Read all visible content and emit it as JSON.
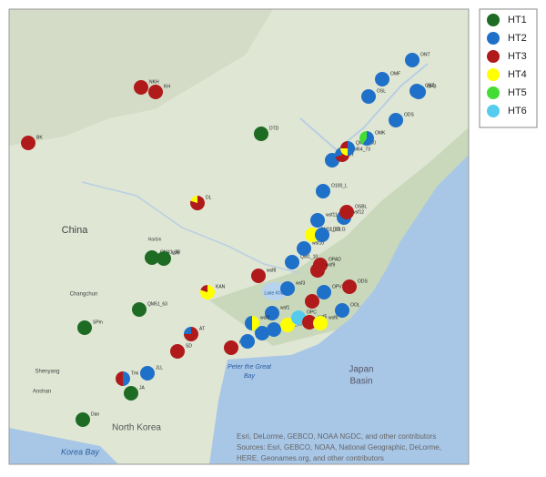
{
  "legend": [
    {
      "label": "HT1",
      "color": "#1e6b24"
    },
    {
      "label": "HT2",
      "color": "#1f70c8"
    },
    {
      "label": "HT3",
      "color": "#b01a1a"
    },
    {
      "label": "HT4",
      "color": "#ffff00"
    },
    {
      "label": "HT5",
      "color": "#44dd33"
    },
    {
      "label": "HT6",
      "color": "#55ccee"
    }
  ],
  "map_labels": [
    "China",
    "Harbin",
    "Changchun",
    "Shenyang",
    "Anshan",
    "North Korea",
    "Korea Bay",
    "Peter the Great",
    "Bay",
    "Japan",
    "Basin",
    "Lake Khanka"
  ],
  "attribution": [
    "Esri, DeLorme, GEBCO, NOAA NGDC, and other contributors",
    "Sources: Esri, GEBCO, NOAA, National Geographic, DeLorme,",
    "HERE, Geonames.org, and other contributors"
  ],
  "markers": [
    {
      "label": "BK",
      "slices": [
        {
          "ht": "HT3",
          "pct": 100
        }
      ]
    },
    {
      "label": "NKH",
      "slices": [
        {
          "ht": "HT3",
          "pct": 100
        }
      ]
    },
    {
      "label": "KH",
      "slices": [
        {
          "ht": "HT3",
          "pct": 100
        }
      ]
    },
    {
      "label": "DTD",
      "slices": [
        {
          "ht": "HT1",
          "pct": 100
        }
      ]
    },
    {
      "label": "DL",
      "slices": [
        {
          "ht": "HT3",
          "pct": 80
        },
        {
          "ht": "HT4",
          "pct": 20
        }
      ]
    },
    {
      "label": "QM41_50",
      "slices": [
        {
          "ht": "HT1",
          "pct": 100
        }
      ]
    },
    {
      "label": "WR",
      "slices": [
        {
          "ht": "HT1",
          "pct": 100
        }
      ]
    },
    {
      "label": "QM51_63",
      "slices": [
        {
          "ht": "HT1",
          "pct": 100
        }
      ]
    },
    {
      "label": "SPm",
      "slices": [
        {
          "ht": "HT1",
          "pct": 100
        }
      ]
    },
    {
      "label": "KAN",
      "slices": [
        {
          "ht": "HT4",
          "pct": 80
        },
        {
          "ht": "HT3",
          "pct": 20
        }
      ]
    },
    {
      "label": "AT",
      "slices": [
        {
          "ht": "HT3",
          "pct": 75
        },
        {
          "ht": "HT2",
          "pct": 25
        }
      ]
    },
    {
      "label": "SD",
      "slices": [
        {
          "ht": "HT3",
          "pct": 100
        }
      ]
    },
    {
      "label": "Tmi",
      "slices": [
        {
          "ht": "HT2",
          "pct": 50
        },
        {
          "ht": "HT3",
          "pct": 50
        }
      ]
    },
    {
      "label": "JLL",
      "slices": [
        {
          "ht": "HT2",
          "pct": 100
        }
      ]
    },
    {
      "label": "JA",
      "slices": [
        {
          "ht": "HT1",
          "pct": 100
        }
      ]
    },
    {
      "label": "Dan",
      "slices": [
        {
          "ht": "HT1",
          "pct": 100
        }
      ]
    },
    {
      "label": "HC",
      "slices": [
        {
          "ht": "HT3",
          "pct": 100
        }
      ]
    },
    {
      "label": "OVL",
      "slices": [
        {
          "ht": "HT2",
          "pct": 100
        }
      ]
    },
    {
      "label": "OLL",
      "slices": [
        {
          "ht": "HT2",
          "pct": 100
        }
      ]
    },
    {
      "label": "QM64_53",
      "slices": [
        {
          "ht": "HT2",
          "pct": 100
        }
      ]
    },
    {
      "label": "wsf1",
      "slices": [
        {
          "ht": "HT2",
          "pct": 100
        }
      ]
    },
    {
      "label": "wsf2",
      "slices": [
        {
          "ht": "HT4",
          "pct": 50
        },
        {
          "ht": "HT2",
          "pct": 50
        }
      ]
    },
    {
      "label": "wsf4",
      "slices": [
        {
          "ht": "HT4",
          "pct": 100
        }
      ]
    },
    {
      "label": "OPC",
      "slices": [
        {
          "ht": "HT6",
          "pct": 100
        }
      ]
    },
    {
      "label": "wsf5",
      "slices": [
        {
          "ht": "HT3",
          "pct": 100
        }
      ]
    },
    {
      "label": "wsf6",
      "slices": [
        {
          "ht": "HT4",
          "pct": 100
        }
      ]
    },
    {
      "label": "wsf3",
      "slices": [
        {
          "ht": "HT2",
          "pct": 100
        }
      ]
    },
    {
      "label": "wsf7",
      "slices": [
        {
          "ht": "HT3",
          "pct": 100
        }
      ]
    },
    {
      "label": "OOL",
      "slices": [
        {
          "ht": "HT2",
          "pct": 100
        }
      ]
    },
    {
      "label": "OPV",
      "slices": [
        {
          "ht": "HT2",
          "pct": 100
        }
      ]
    },
    {
      "label": "ODS",
      "slices": [
        {
          "ht": "HT3",
          "pct": 100
        }
      ]
    },
    {
      "label": "wsf8",
      "slices": [
        {
          "ht": "HT3",
          "pct": 100
        }
      ]
    },
    {
      "label": "OPAD",
      "slices": [
        {
          "ht": "HT3",
          "pct": 100
        }
      ]
    },
    {
      "label": "QM1_10",
      "slices": [
        {
          "ht": "HT2",
          "pct": 100
        }
      ]
    },
    {
      "label": "wsf9",
      "slices": [
        {
          "ht": "HT3",
          "pct": 100
        }
      ]
    },
    {
      "label": "wsf10",
      "slices": [
        {
          "ht": "HT2",
          "pct": 100
        }
      ]
    },
    {
      "label": "QM11_20",
      "slices": [
        {
          "ht": "HT4",
          "pct": 100
        }
      ]
    },
    {
      "label": "LDCLG",
      "slices": [
        {
          "ht": "HT2",
          "pct": 100
        }
      ]
    },
    {
      "label": "wsf11",
      "slices": [
        {
          "ht": "HT2",
          "pct": 100
        }
      ]
    },
    {
      "label": "wsf12",
      "slices": [
        {
          "ht": "HT2",
          "pct": 100
        }
      ]
    },
    {
      "label": "OSBL",
      "slices": [
        {
          "ht": "HT3",
          "pct": 100
        }
      ]
    },
    {
      "label": "O100_L",
      "slices": [
        {
          "ht": "HT2",
          "pct": 100
        }
      ]
    },
    {
      "label": "OBCH",
      "slices": [
        {
          "ht": "HT2",
          "pct": 100
        }
      ]
    },
    {
      "label": "QM64_73",
      "slices": [
        {
          "ht": "HT3",
          "pct": 70
        },
        {
          "ht": "HT2",
          "pct": 30
        }
      ]
    },
    {
      "label": "QM21_30",
      "slices": [
        {
          "ht": "HT2",
          "pct": 50
        },
        {
          "ht": "HT4",
          "pct": 25
        },
        {
          "ht": "HT3",
          "pct": 25
        }
      ]
    },
    {
      "label": "OMK",
      "slices": [
        {
          "ht": "HT2",
          "pct": 60
        },
        {
          "ht": "HT5",
          "pct": 40
        }
      ]
    },
    {
      "label": "ODS",
      "slices": [
        {
          "ht": "HT2",
          "pct": 100
        }
      ]
    },
    {
      "label": "OSL",
      "slices": [
        {
          "ht": "HT2",
          "pct": 100
        }
      ]
    },
    {
      "label": "OMF",
      "slices": [
        {
          "ht": "HT2",
          "pct": 100
        }
      ]
    },
    {
      "label": "OBZ",
      "slices": [
        {
          "ht": "HT2",
          "pct": 100
        }
      ]
    },
    {
      "label": "OPB",
      "slices": [
        {
          "ht": "HT2",
          "pct": 100
        }
      ]
    },
    {
      "label": "ONT",
      "slices": [
        {
          "ht": "HT2",
          "pct": 100
        }
      ]
    }
  ]
}
